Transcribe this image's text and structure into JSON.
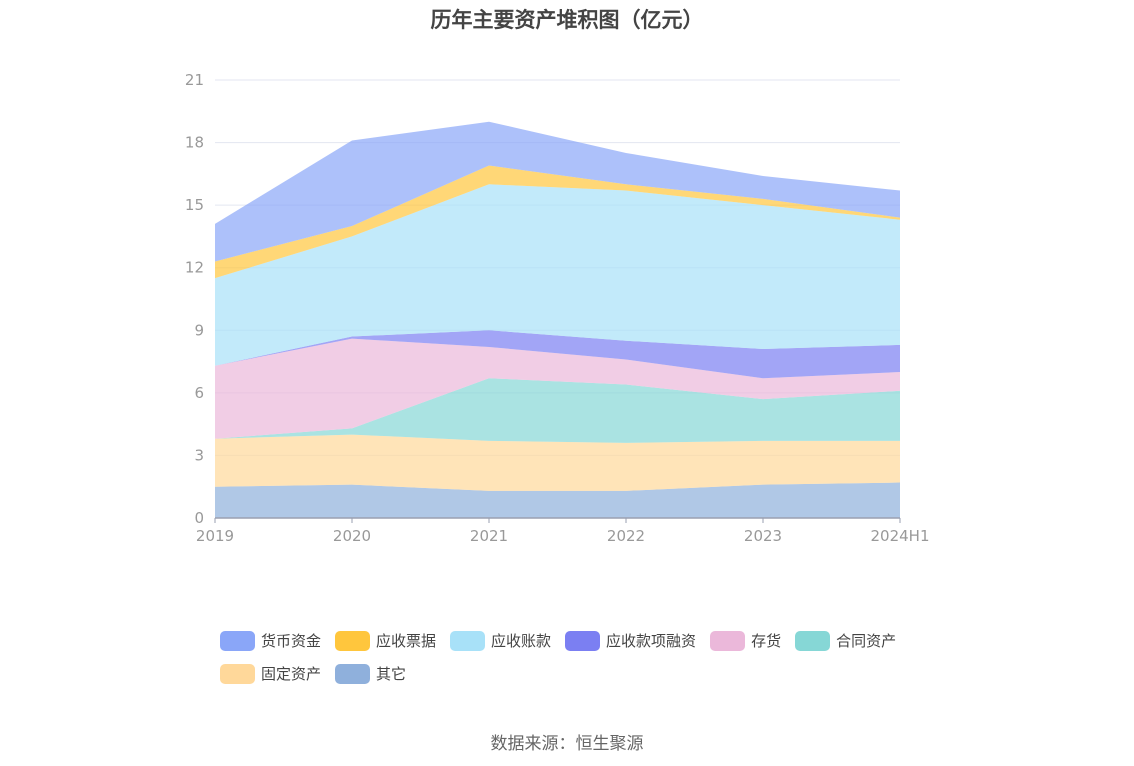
{
  "chart_data": {
    "type": "area",
    "stacked": true,
    "title": "历年主要资产堆积图（亿元）",
    "categories": [
      "2019",
      "2020",
      "2021",
      "2022",
      "2023",
      "2024H1"
    ],
    "ylim": [
      0,
      21
    ],
    "yticks": [
      0,
      3,
      6,
      9,
      12,
      15,
      18,
      21
    ],
    "grid": true,
    "legend_position": "bottom",
    "series": [
      {
        "name": "其它",
        "color": "#8fb0dc",
        "values": [
          1.5,
          1.6,
          1.3,
          1.3,
          1.6,
          1.7
        ]
      },
      {
        "name": "固定资产",
        "color": "#ffd89a",
        "values": [
          2.3,
          2.4,
          2.4,
          2.3,
          2.1,
          2.0
        ]
      },
      {
        "name": "合同资产",
        "color": "#86d7d6",
        "values": [
          0.0,
          0.3,
          3.0,
          2.8,
          2.0,
          2.4
        ]
      },
      {
        "name": "存货",
        "color": "#ebb8da",
        "values": [
          3.5,
          4.3,
          1.5,
          1.2,
          1.0,
          0.9
        ]
      },
      {
        "name": "应收款项融资",
        "color": "#7b7ff2",
        "values": [
          0.0,
          0.1,
          0.8,
          0.9,
          1.4,
          1.3
        ]
      },
      {
        "name": "应收账款",
        "color": "#a8e1f8",
        "values": [
          4.2,
          4.8,
          7.0,
          7.2,
          6.9,
          6.0
        ]
      },
      {
        "name": "应收票据",
        "color": "#ffc63d",
        "values": [
          0.8,
          0.5,
          0.9,
          0.3,
          0.3,
          0.1
        ]
      },
      {
        "name": "货币资金",
        "color": "#8aa6f8",
        "values": [
          1.8,
          4.1,
          2.1,
          1.5,
          1.1,
          1.3
        ]
      }
    ]
  },
  "legend_order": [
    "货币资金",
    "应收票据",
    "应收账款",
    "应收款项融资",
    "存货",
    "合同资产",
    "固定资产",
    "其它"
  ],
  "source": "数据来源：恒生聚源"
}
